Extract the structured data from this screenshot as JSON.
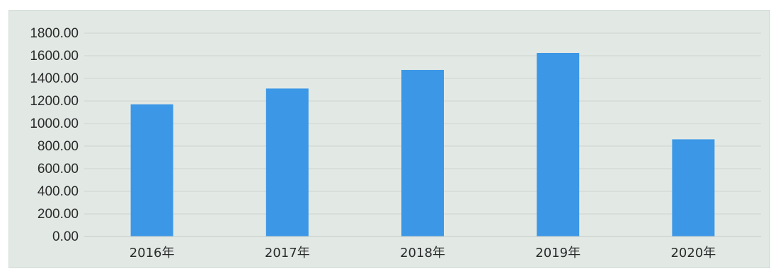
{
  "chart_data": {
    "type": "bar",
    "title": "",
    "xlabel": "",
    "ylabel": "",
    "categories": [
      "2016年",
      "2017年",
      "2018年",
      "2019年",
      "2020年"
    ],
    "values": [
      1170,
      1310,
      1475,
      1625,
      860
    ],
    "ylim": [
      0,
      1800
    ],
    "ytick_step": 200,
    "ytick_labels": [
      "0.00",
      "200.00",
      "400.00",
      "600.00",
      "800.00",
      "1000.00",
      "1200.00",
      "1400.00",
      "1600.00",
      "1800.00"
    ],
    "grid": true,
    "legend": "none",
    "bar_color": "#3c97e6",
    "background_color": "#e2e9e5"
  }
}
